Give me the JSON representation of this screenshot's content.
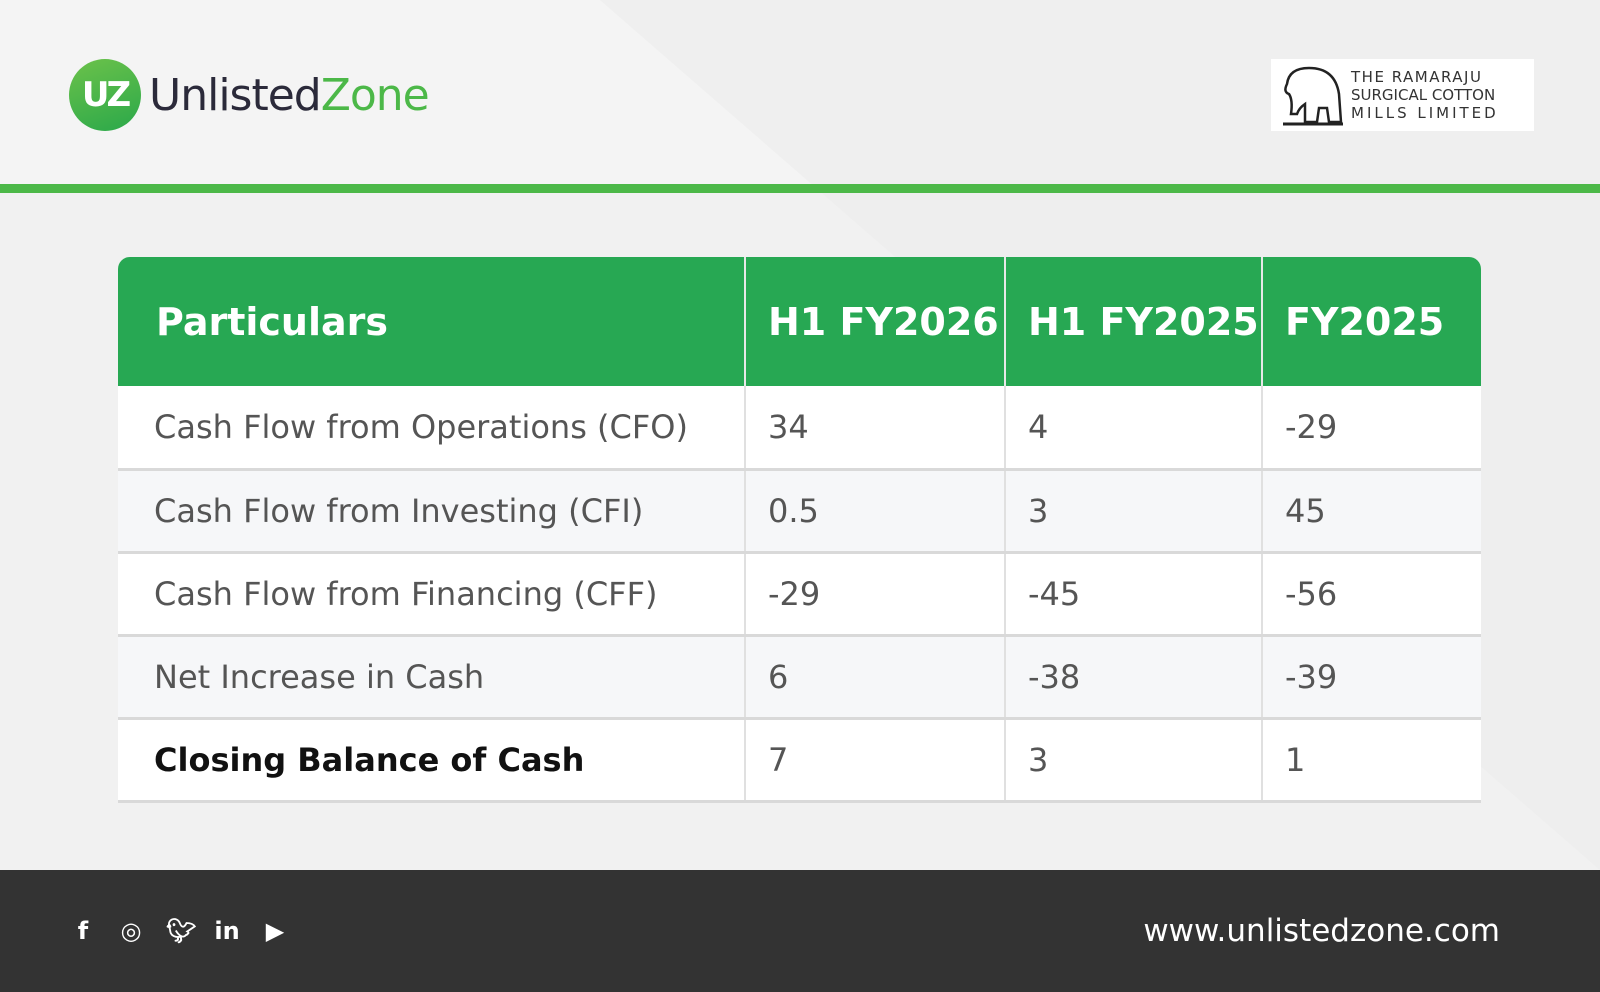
{
  "header": {
    "brand_part1": "Unlisted",
    "brand_part2": "Zone",
    "badge": "UZ",
    "client_logo": "THE RAMARAJU SURGICAL COTTON MILLS LIMITED",
    "client_lines": [
      "THE RAMARAJU",
      "SURGICAL COTTON",
      "MILLS LIMITED"
    ]
  },
  "table": {
    "headers": [
      "Particulars",
      "H1 FY2026",
      "H1 FY2025",
      "FY2025"
    ],
    "rows": [
      [
        "Cash Flow from Operations (CFO)",
        "34",
        "4",
        "-29"
      ],
      [
        "Cash Flow from Investing (CFI)",
        "0.5",
        "3",
        "45"
      ],
      [
        "Cash Flow from Financing (CFF)",
        "-29",
        "-45",
        "-56"
      ],
      [
        "Net Increase in Cash",
        "6",
        "-38",
        "-39"
      ],
      [
        "Closing Balance of Cash",
        "7",
        "3",
        "1"
      ]
    ]
  },
  "footer": {
    "url": "www.unlistedzone.com",
    "social_icons": [
      "facebook-icon",
      "instagram-icon",
      "twitter-icon",
      "linkedin-icon",
      "youtube-icon"
    ]
  },
  "colors": {
    "green": "#27a853",
    "brand_green": "#4cb848",
    "footer": "#333333"
  }
}
